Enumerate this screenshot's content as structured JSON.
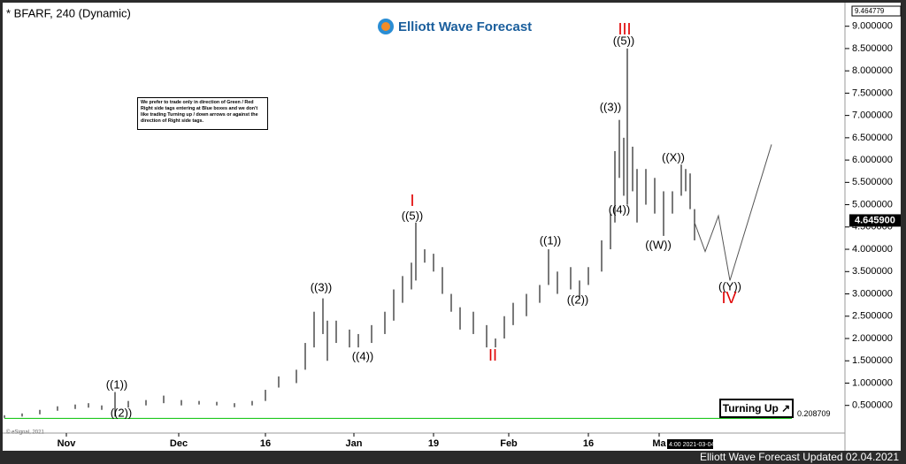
{
  "chart_data": {
    "type": "ohlc",
    "title": "* BFARF, 240 (Dynamic)",
    "logo": "Elliott Wave Forecast",
    "note": "We prefer to trade only in direction of Green / Red Right side tags entering at Blue boxes and we don't like trading Turning up / down arrows or against the direction of Right side tags.",
    "button": "Turning Up",
    "footer": "Elliott Wave Forecast Updated 02.04.2021",
    "copyright": "© eSignal, 2021",
    "cursor_time": "4:00 2021-03-04",
    "top_price": "9.464779",
    "color": "#222222",
    "projection_color": "#555555",
    "x": [
      0,
      4,
      8,
      12,
      16,
      19,
      22,
      25,
      28,
      32,
      36,
      40,
      44,
      48,
      52,
      56,
      59,
      62,
      66,
      68,
      70,
      72,
      73,
      75,
      78,
      80,
      83,
      86,
      88,
      90,
      92,
      93,
      95,
      97,
      99,
      101,
      103,
      106,
      109,
      111,
      113,
      115,
      118,
      121,
      123,
      125,
      128,
      130,
      132,
      135,
      137,
      138,
      139,
      140,
      140.8,
      142,
      143,
      145,
      147,
      149,
      151,
      153,
      154,
      155,
      156
    ],
    "low": [
      0.22,
      0.25,
      0.3,
      0.38,
      0.42,
      0.45,
      0.4,
      0.25,
      0.45,
      0.5,
      0.55,
      0.5,
      0.52,
      0.5,
      0.46,
      0.5,
      0.6,
      0.9,
      1.0,
      1.3,
      1.8,
      2.1,
      1.5,
      1.9,
      1.8,
      1.8,
      1.9,
      2.1,
      2.4,
      2.8,
      3.1,
      3.3,
      3.7,
      3.5,
      3.0,
      2.6,
      2.2,
      2.1,
      1.8,
      1.8,
      2.0,
      2.3,
      2.5,
      2.8,
      3.2,
      3.0,
      3.1,
      2.9,
      3.2,
      3.5,
      4.0,
      4.6,
      5.6,
      5.2,
      5.0,
      5.3,
      4.6,
      5.0,
      4.8,
      4.3,
      4.8,
      5.2,
      5.3,
      4.9,
      4.2
    ],
    "high": [
      0.28,
      0.32,
      0.4,
      0.48,
      0.52,
      0.55,
      0.5,
      0.8,
      0.6,
      0.62,
      0.72,
      0.62,
      0.6,
      0.58,
      0.55,
      0.6,
      0.85,
      1.15,
      1.3,
      1.9,
      2.6,
      2.9,
      2.4,
      2.4,
      2.2,
      2.1,
      2.3,
      2.6,
      3.1,
      3.4,
      3.7,
      4.6,
      4.0,
      3.9,
      3.6,
      3.0,
      2.7,
      2.6,
      2.3,
      2.0,
      2.5,
      2.8,
      3.0,
      3.2,
      4.0,
      3.5,
      3.6,
      3.3,
      3.6,
      4.2,
      4.8,
      6.2,
      6.9,
      6.5,
      8.5,
      6.3,
      5.8,
      5.8,
      5.6,
      5.3,
      5.3,
      5.9,
      5.8,
      5.7,
      4.9
    ],
    "projection": {
      "x": [
        156,
        158.4,
        161.4,
        164,
        173.4
      ],
      "y": [
        4.6,
        3.95,
        4.75,
        3.3,
        6.35
      ]
    },
    "xlim": [
      0,
      189
    ],
    "xticks": [
      {
        "value": 14,
        "label": "Nov"
      },
      {
        "value": 39.4,
        "label": "Dec"
      },
      {
        "value": 59,
        "label": "16"
      },
      {
        "value": 79,
        "label": "Jan"
      },
      {
        "value": 97,
        "label": "19"
      },
      {
        "value": 114,
        "label": "Feb"
      },
      {
        "value": 132,
        "label": "16"
      },
      {
        "value": 148,
        "label": "Ma"
      }
    ],
    "ylim": [
      -0.12,
      9.39
    ],
    "yticks": [
      {
        "value": 0.5,
        "label": "0.500000"
      },
      {
        "value": 1,
        "label": "1.000000"
      },
      {
        "value": 1.5,
        "label": "1.500000"
      },
      {
        "value": 2,
        "label": "2.000000"
      },
      {
        "value": 2.5,
        "label": "2.500000"
      },
      {
        "value": 3,
        "label": "3.000000"
      },
      {
        "value": 3.5,
        "label": "3.500000"
      },
      {
        "value": 4,
        "label": "4.000000"
      },
      {
        "value": 4.5,
        "label": "4.500000"
      },
      {
        "value": 5,
        "label": "5.000000"
      },
      {
        "value": 5.5,
        "label": "5.500000"
      },
      {
        "value": 6,
        "label": "6.000000"
      },
      {
        "value": 6.5,
        "label": "6.500000"
      },
      {
        "value": 7,
        "label": "7.000000"
      },
      {
        "value": 7.5,
        "label": "7.500000"
      },
      {
        "value": 8,
        "label": "8.000000"
      },
      {
        "value": 8.5,
        "label": "8.500000"
      },
      {
        "value": 9,
        "label": "9.000000"
      }
    ],
    "current_price": {
      "value": 4.6459,
      "label": "4.645900"
    },
    "support_line": {
      "value": 0.208709,
      "label": "0.208709",
      "color": "#00c000"
    },
    "annotations": [
      "((1))",
      "((2))",
      "((3))",
      "((4))",
      "((5))",
      "((1))",
      "((2))",
      "((3))",
      "((4))",
      "((5))",
      "((W))",
      "((X))",
      "((Y))"
    ],
    "degree_labels": [
      "I",
      "II",
      "III",
      "IV"
    ],
    "degree_color": "#e00000"
  }
}
